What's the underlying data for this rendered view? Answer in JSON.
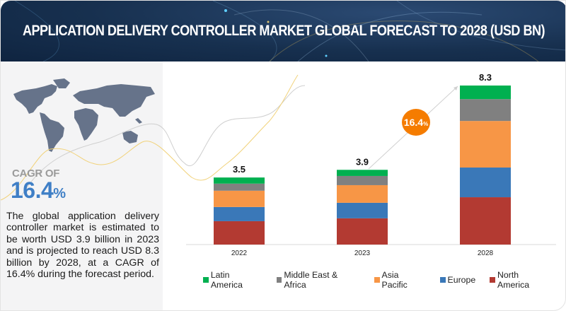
{
  "header": {
    "title": "APPLICATION DELIVERY CONTROLLER MARKET GLOBAL FORECAST TO 2028 (USD BN)"
  },
  "left_panel": {
    "map_icon": "world-map",
    "cagr_label": "CAGR OF",
    "cagr_value": "16.4",
    "cagr_unit": "%",
    "description": "The global application delivery controller market is estimated to be worth USD 3.9 billion in 2023 and is projected to reach USD 8.3 billion by 2028, at a CAGR of 16.4% during the forecast period."
  },
  "cagr_bubble": {
    "value": "16.4",
    "unit": "%",
    "color": "#f57c00"
  },
  "chart_data": {
    "type": "bar",
    "stacked": true,
    "title": "APPLICATION DELIVERY CONTROLLER MARKET GLOBAL FORECAST TO 2028 (USD BN)",
    "xlabel": "",
    "ylabel": "USD BN",
    "categories": [
      "2022",
      "2023",
      "2028"
    ],
    "totals": [
      "3.5",
      "3.9",
      "8.3"
    ],
    "total_values": [
      3.5,
      3.9,
      8.3
    ],
    "ylim": [
      0,
      8.3
    ],
    "grid": false,
    "legend_position": "bottom",
    "series": [
      {
        "name": "North America",
        "color": "#b33a32",
        "values": [
          1.22,
          1.37,
          2.47
        ]
      },
      {
        "name": "Europe",
        "color": "#3a78b8",
        "values": [
          0.74,
          0.81,
          1.55
        ]
      },
      {
        "name": "Asia Pacific",
        "color": "#f79646",
        "values": [
          0.85,
          0.92,
          2.43
        ]
      },
      {
        "name": "Middle East & Africa",
        "color": "#808080",
        "values": [
          0.37,
          0.48,
          1.14
        ]
      },
      {
        "name": "Latin America",
        "color": "#00b050",
        "values": [
          0.32,
          0.32,
          0.71
        ]
      }
    ],
    "legend_order": [
      "Latin America",
      "Middle East & Africa",
      "Asia Pacific",
      "Europe",
      "North America"
    ]
  }
}
